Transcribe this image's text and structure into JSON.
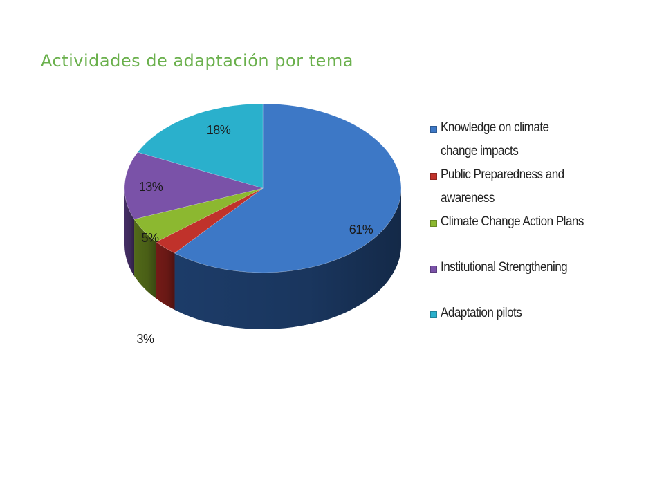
{
  "slide": {
    "title": "Actividades de adaptación por tema"
  },
  "chart_data": {
    "type": "pie",
    "title": "",
    "three_d": true,
    "legend_position": "right",
    "categories": [
      "Knowledge on climate change impacts",
      "Public Preparedness and awareness",
      "Climate Change Action Plans",
      "Institutional Strengthening",
      "Adaptation pilots"
    ],
    "values": [
      61,
      3,
      5,
      13,
      18
    ],
    "data_labels": [
      "61%",
      "3%",
      "5%",
      "13%",
      "18%"
    ],
    "colors": [
      "#3d78c6",
      "#c0322b",
      "#8cb830",
      "#7a52a8",
      "#2ab0cc"
    ],
    "side_colors": [
      "#1e3f6e",
      "#7a1c18",
      "#566f1a",
      "#48306a",
      "#16697a"
    ]
  }
}
